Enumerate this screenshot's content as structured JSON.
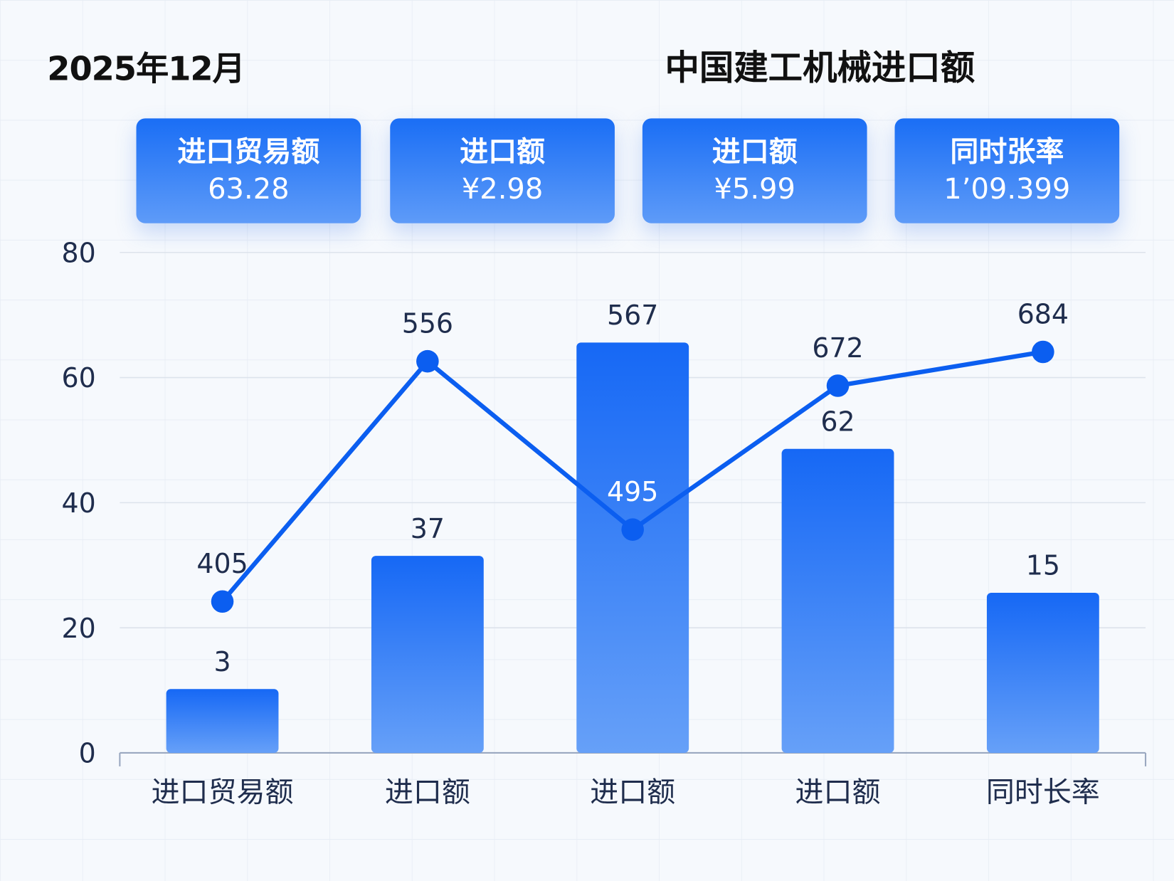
{
  "header": {
    "date": "2025年12月",
    "title": "中国建工机械进口额"
  },
  "cards": [
    {
      "label": "进口贸易额",
      "value": "63.28"
    },
    {
      "label": "进口额",
      "value": "¥2.98"
    },
    {
      "label": "进口额",
      "value": "¥5.99"
    },
    {
      "label": "同时张率",
      "value": "1’09.399"
    }
  ],
  "colors": {
    "bar_top": "#1668f5",
    "bar_bottom": "#66a0f8",
    "line": "#0b5ef0",
    "card": "#1a6ef5",
    "text": "#1f2d4d"
  },
  "chart_data": {
    "type": "bar+line",
    "title": "中国建工机械进口额",
    "categories": [
      "进口贸易额",
      "进口额",
      "进口额",
      "进口额",
      "同时长率"
    ],
    "ylim": [
      0,
      80
    ],
    "yticks": [
      "0",
      "20",
      "40",
      "60",
      "80"
    ],
    "grid": true,
    "series": [
      {
        "type": "bar",
        "values": [
          10.2,
          31.5,
          65.6,
          48.6,
          25.6
        ],
        "labels": [
          "3",
          "37",
          "567",
          "62",
          "15"
        ]
      },
      {
        "type": "line",
        "values": [
          24.2,
          62.6,
          35.7,
          58.7,
          64.1
        ],
        "labels": [
          "405",
          "556",
          "495",
          "672",
          "684"
        ]
      }
    ]
  }
}
